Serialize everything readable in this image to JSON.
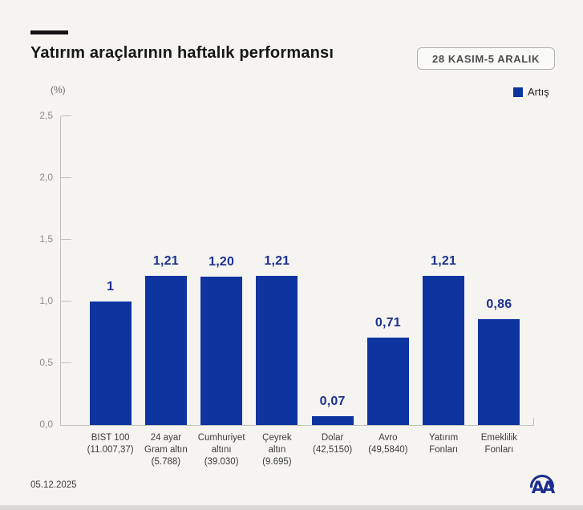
{
  "header": {
    "title": "Yatırım araçlarının haftalık performansı",
    "date_badge": "28 KASIM-5 ARALIK"
  },
  "legend": {
    "label": "Artış",
    "color": "#0e34a0"
  },
  "chart_data": {
    "type": "bar",
    "title": "Yatırım araçlarının haftalık performansı",
    "subtitle": "28 KASIM-5 ARALIK",
    "categories": [
      [
        "BIST 100",
        "(11.007,37)"
      ],
      [
        "24 ayar",
        "Gram altın",
        "(5.788)"
      ],
      [
        "Cumhuriyet",
        "altını",
        "(39.030)"
      ],
      [
        "Çeyrek",
        "altın",
        "(9.695)"
      ],
      [
        "Dolar",
        "(42,5150)"
      ],
      [
        "Avro",
        "(49,5840)"
      ],
      [
        "Yatırım",
        "Fonları"
      ],
      [
        "Emeklilik",
        "Fonları"
      ]
    ],
    "values": [
      1,
      1.21,
      1.2,
      1.21,
      0.07,
      0.71,
      1.21,
      0.86
    ],
    "value_labels": [
      "1",
      "1,21",
      "1,20",
      "1,21",
      "0,07",
      "0,71",
      "1,21",
      "0,86"
    ],
    "xlabel": "",
    "ylabel": "(%)",
    "ylim": [
      0,
      2.5
    ],
    "ytick_labels": [
      "0,0",
      "0,5",
      "1,0",
      "1,5",
      "2,0",
      "2,5"
    ],
    "bar_color": "#0e34a0",
    "value_label_color": "#1d3090",
    "legend_entries": [
      "Artış"
    ],
    "legend_position": "top-right",
    "grid": false
  },
  "footer": {
    "date": "05.12.2025",
    "logo": "AA"
  }
}
